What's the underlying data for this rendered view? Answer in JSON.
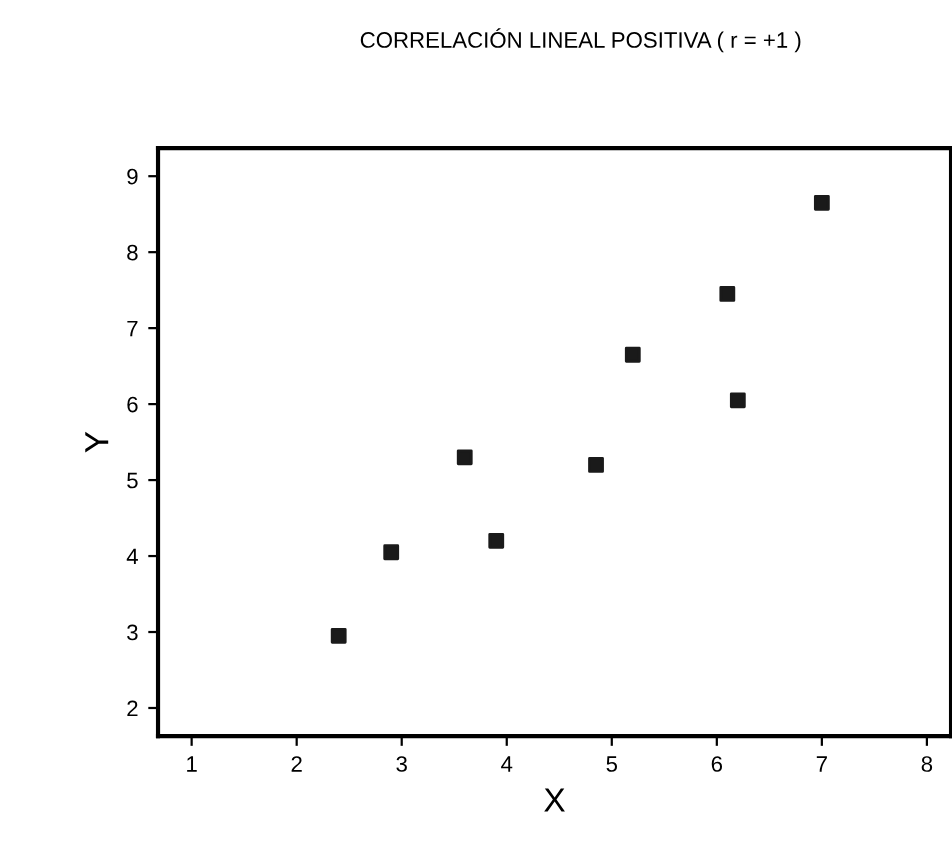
{
  "chart_data": {
    "type": "scatter",
    "title": "CORRELACIÓN LINEAL POSITIVA ( r = +1 )",
    "xlabel": "X",
    "ylabel": "Y",
    "x": [
      2.4,
      2.9,
      3.6,
      3.9,
      4.85,
      5.2,
      6.1,
      6.2,
      7.0
    ],
    "series": [
      {
        "color": "#1a1a1a",
        "values": [
          2.95,
          4.05,
          5.3,
          4.2,
          5.2,
          6.65,
          7.45,
          6.05,
          8.65
        ]
      }
    ],
    "xlim": [
      0.68,
      8.23
    ],
    "ylim": [
      1.63,
      9.37
    ],
    "xticks": [
      1,
      2,
      3,
      4,
      5,
      6,
      7,
      8
    ],
    "yticks": [
      2,
      3,
      4,
      5,
      6,
      7,
      8,
      9
    ],
    "marker": "square",
    "grid": false,
    "legend": false
  }
}
